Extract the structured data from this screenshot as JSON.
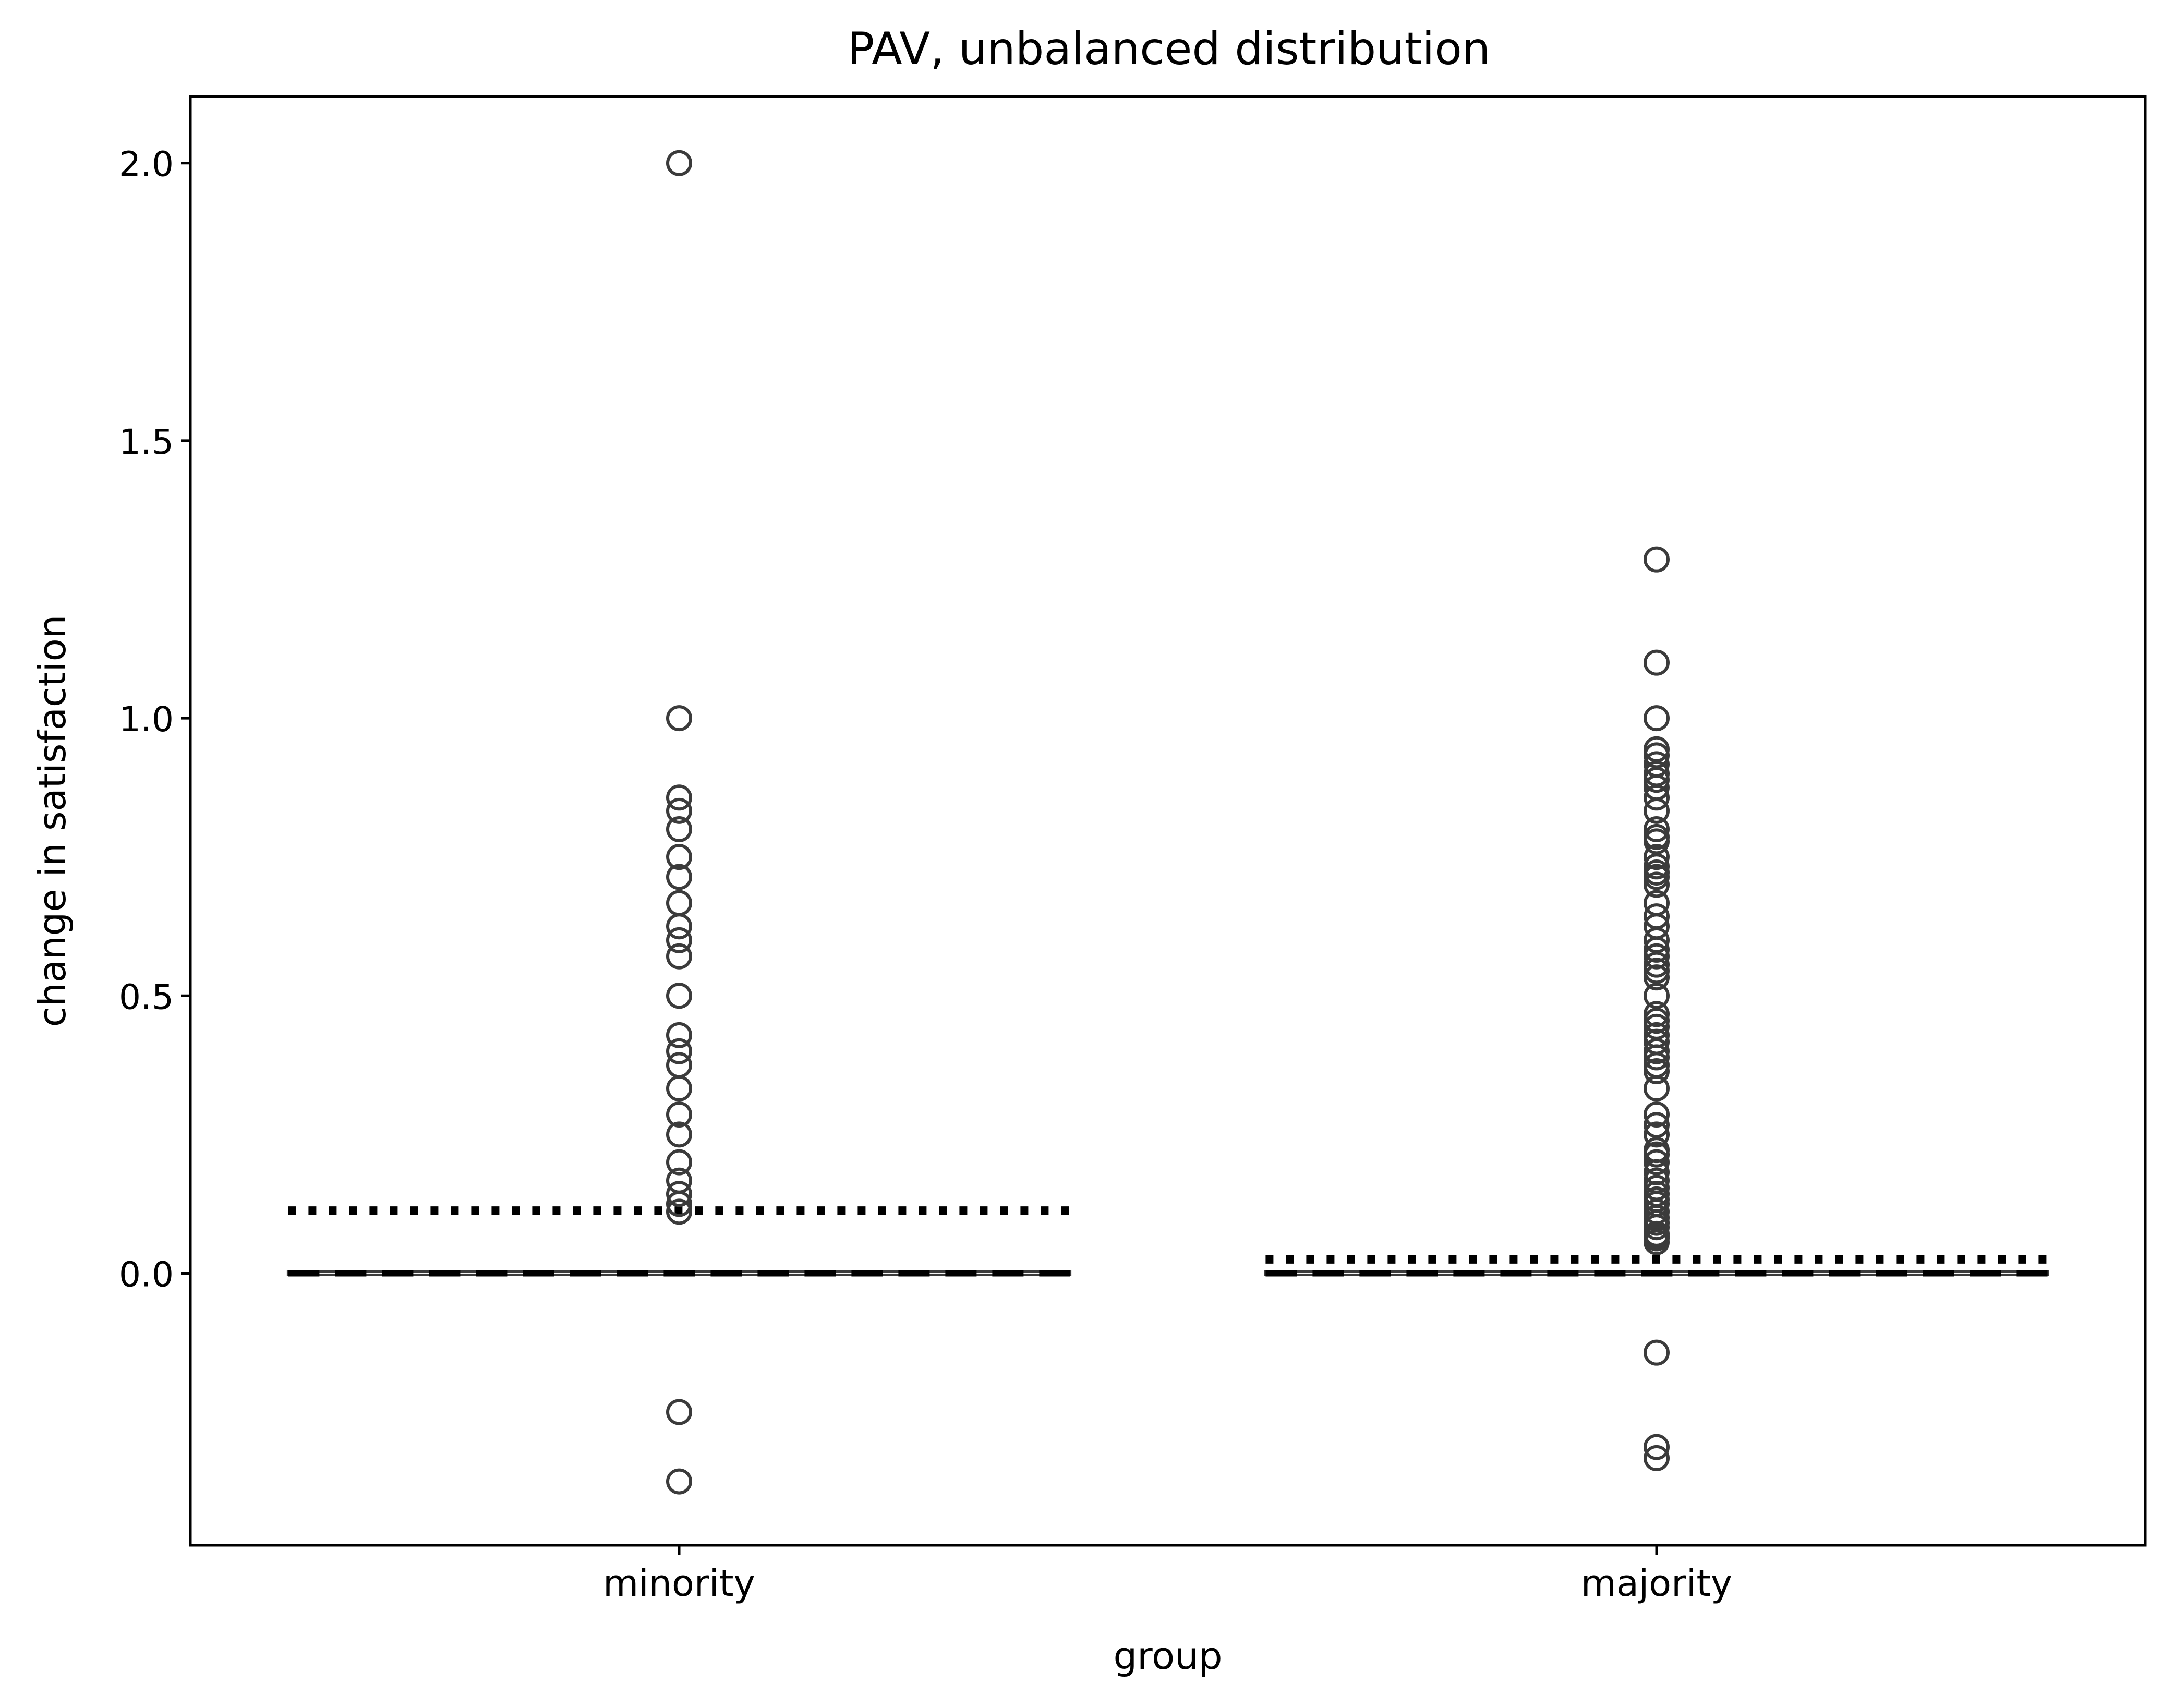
{
  "chart_data": {
    "type": "boxplot",
    "title": "PAV, unbalanced distribution",
    "xlabel": "group",
    "ylabel": "change in satisfaction",
    "categories": [
      "minority",
      "majority"
    ],
    "ylim": [
      -0.49,
      2.12
    ],
    "yticks": [
      0.0,
      0.5,
      1.0,
      1.5,
      2.0
    ],
    "ytick_labels": [
      "0.0",
      "0.5",
      "1.0",
      "1.5",
      "2.0"
    ],
    "grid": false,
    "legend": "none",
    "groups": [
      {
        "name": "minority",
        "q1": 0.0,
        "median": 0.0,
        "q3": 0.0,
        "whisker_low": 0.0,
        "whisker_high": 0.0,
        "mean": 0.113,
        "outliers": [
          2.0,
          1.0,
          0.857,
          0.833,
          0.8,
          0.75,
          0.714,
          0.667,
          0.625,
          0.6,
          0.571,
          0.5,
          0.429,
          0.4,
          0.375,
          0.333,
          0.286,
          0.25,
          0.2,
          0.167,
          0.143,
          0.125,
          0.111,
          -0.25,
          -0.375
        ]
      },
      {
        "name": "majority",
        "q1": 0.0,
        "median": 0.0,
        "q3": 0.0,
        "whisker_low": 0.0,
        "whisker_high": 0.0,
        "mean": 0.025,
        "outliers": [
          1.286,
          1.1,
          1.0,
          0.944,
          0.933,
          0.917,
          0.9,
          0.889,
          0.875,
          0.857,
          0.833,
          0.8,
          0.786,
          0.778,
          0.75,
          0.733,
          0.722,
          0.714,
          0.7,
          0.667,
          0.643,
          0.625,
          0.6,
          0.583,
          0.571,
          0.556,
          0.545,
          0.533,
          0.5,
          0.467,
          0.455,
          0.444,
          0.429,
          0.417,
          0.4,
          0.389,
          0.375,
          0.364,
          0.333,
          0.286,
          0.267,
          0.25,
          0.222,
          0.214,
          0.2,
          0.182,
          0.167,
          0.154,
          0.143,
          0.133,
          0.125,
          0.111,
          0.1,
          0.091,
          0.083,
          0.071,
          0.067,
          0.063,
          0.056,
          -0.143,
          -0.313,
          -0.333
        ]
      }
    ],
    "colors": {
      "marker": "#3b3b3b",
      "line": "#000000",
      "axis": "#000000"
    }
  }
}
